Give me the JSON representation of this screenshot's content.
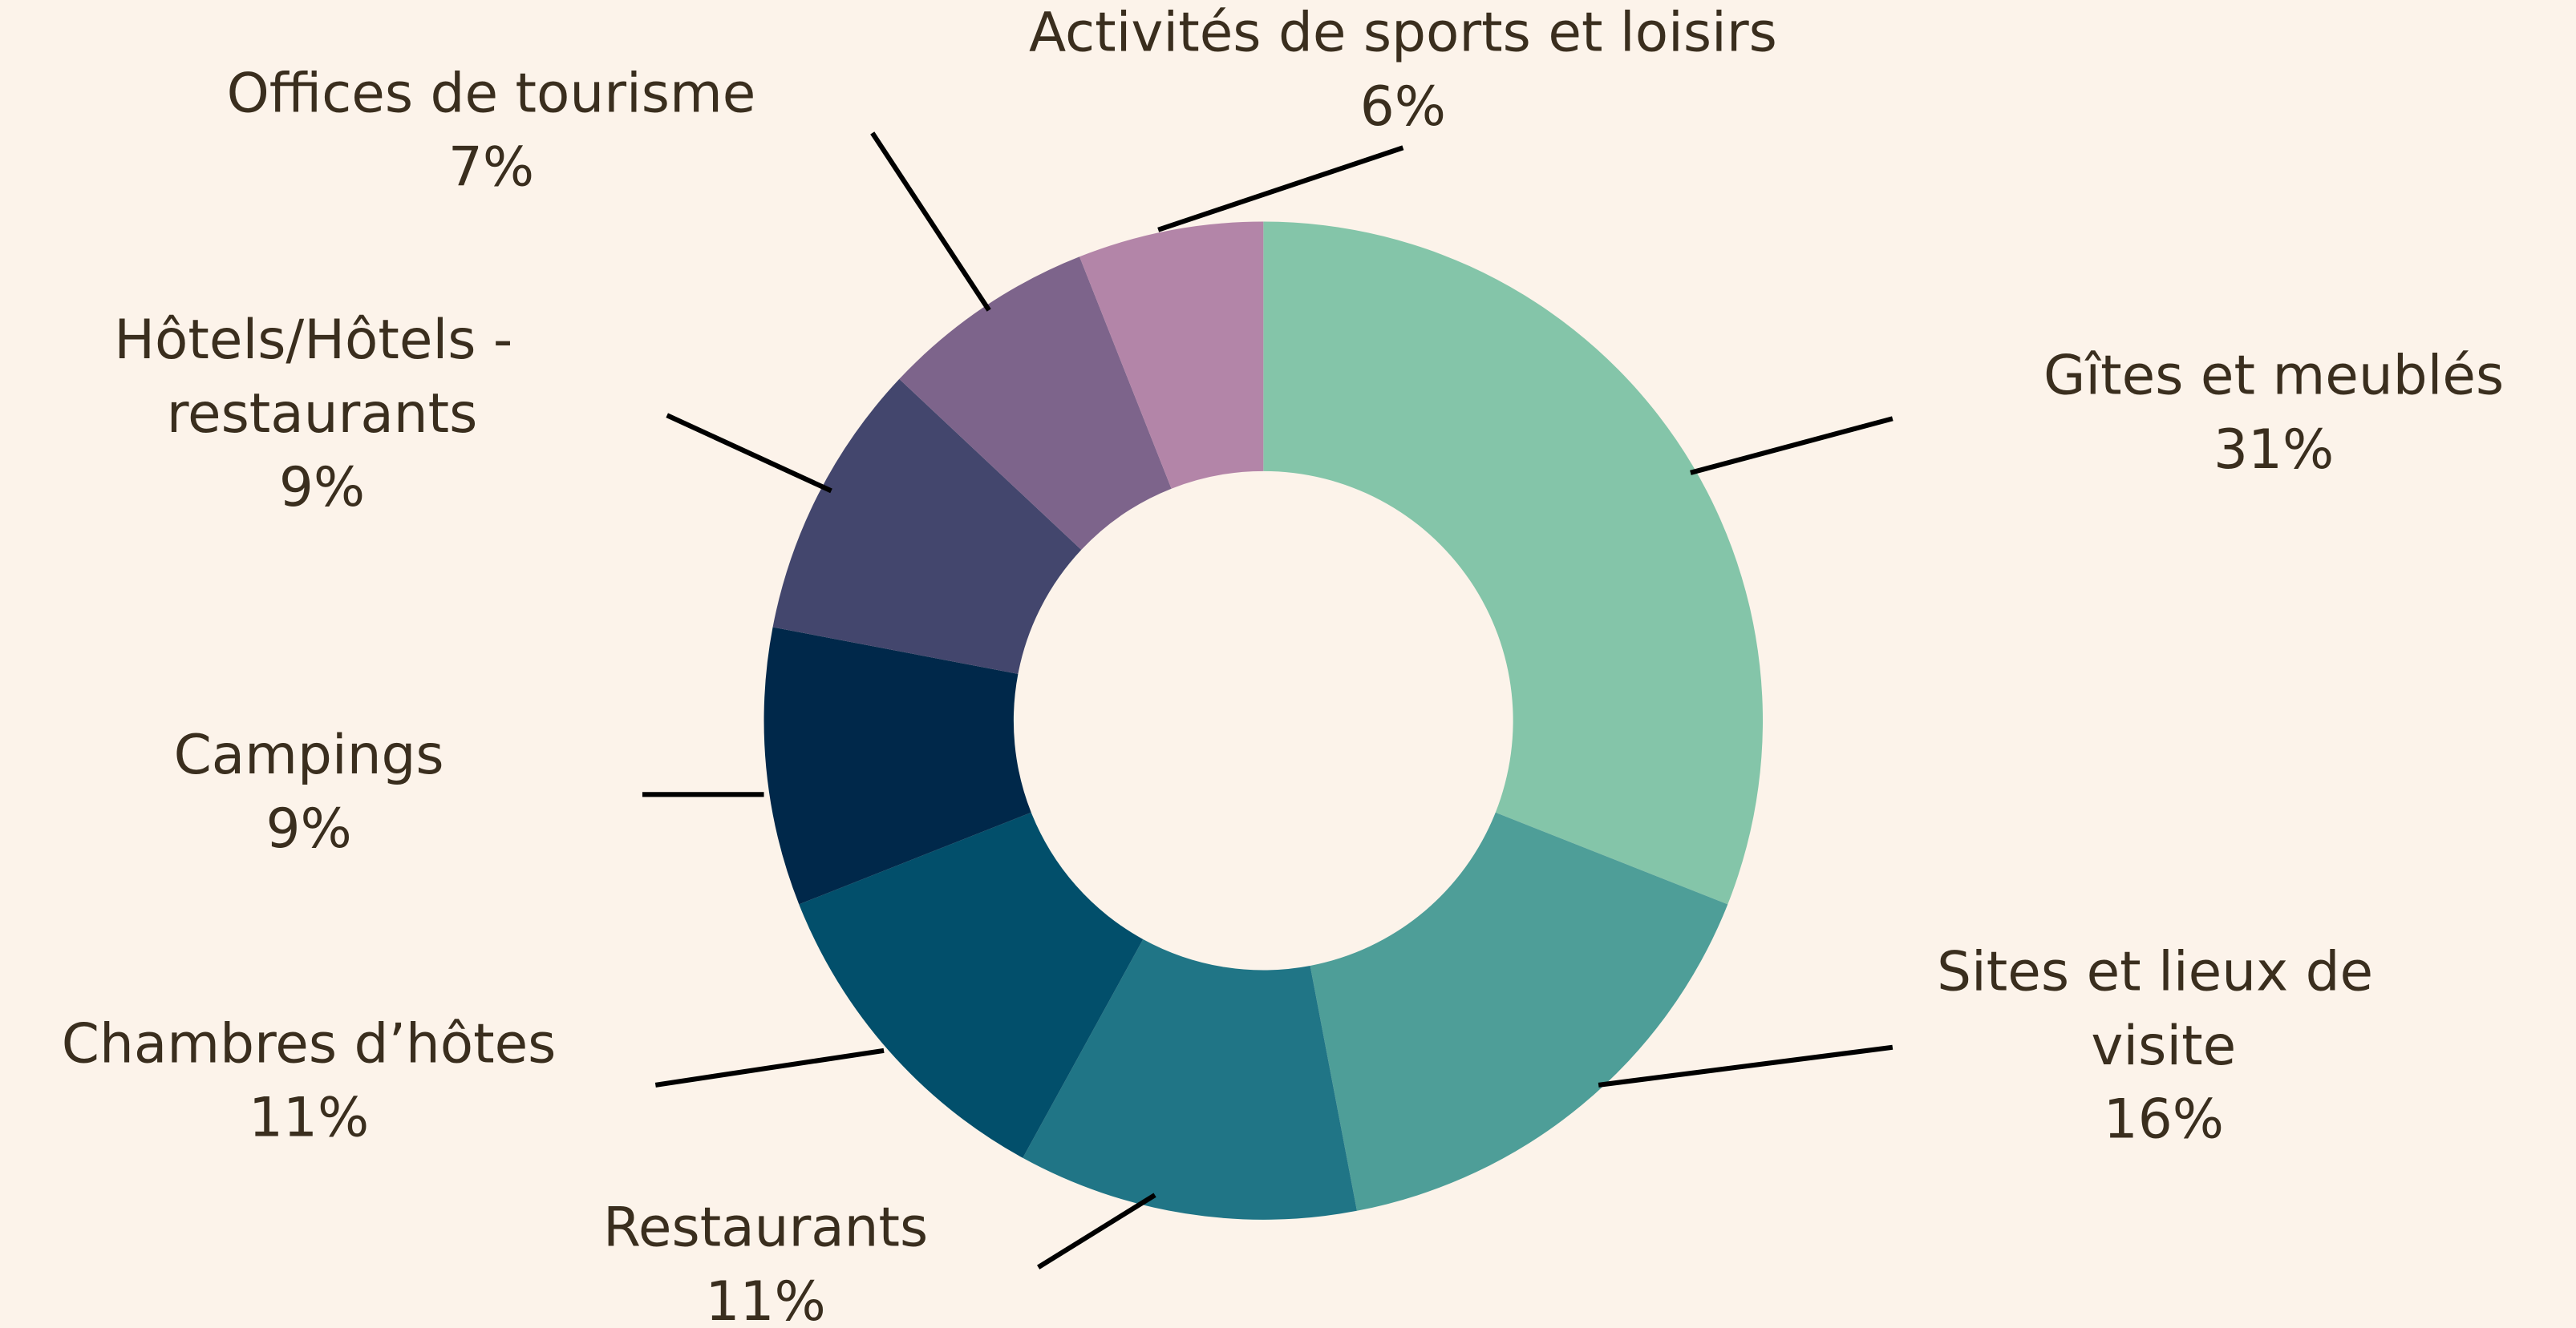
{
  "chart_data": {
    "type": "donut",
    "categories": [
      "Gîtes et meublés",
      "Sites et lieux de visite",
      "Restaurants",
      "Chambres d’hôtes",
      "Campings",
      "Hôtels/Hôtels - restaurants",
      "Offices de tourisme",
      "Activités de sports et loisirs"
    ],
    "values": [
      31,
      16,
      11,
      11,
      9,
      9,
      7,
      6
    ],
    "value_labels": [
      "31%",
      "16%",
      "11%",
      "11%",
      "9%",
      "9%",
      "7%",
      "6%"
    ],
    "colors": [
      "#84c5a9",
      "#4e9e98",
      "#207586",
      "#024f6b",
      "#00284a",
      "#43466d",
      "#7d648b",
      "#b385a8"
    ]
  }
}
